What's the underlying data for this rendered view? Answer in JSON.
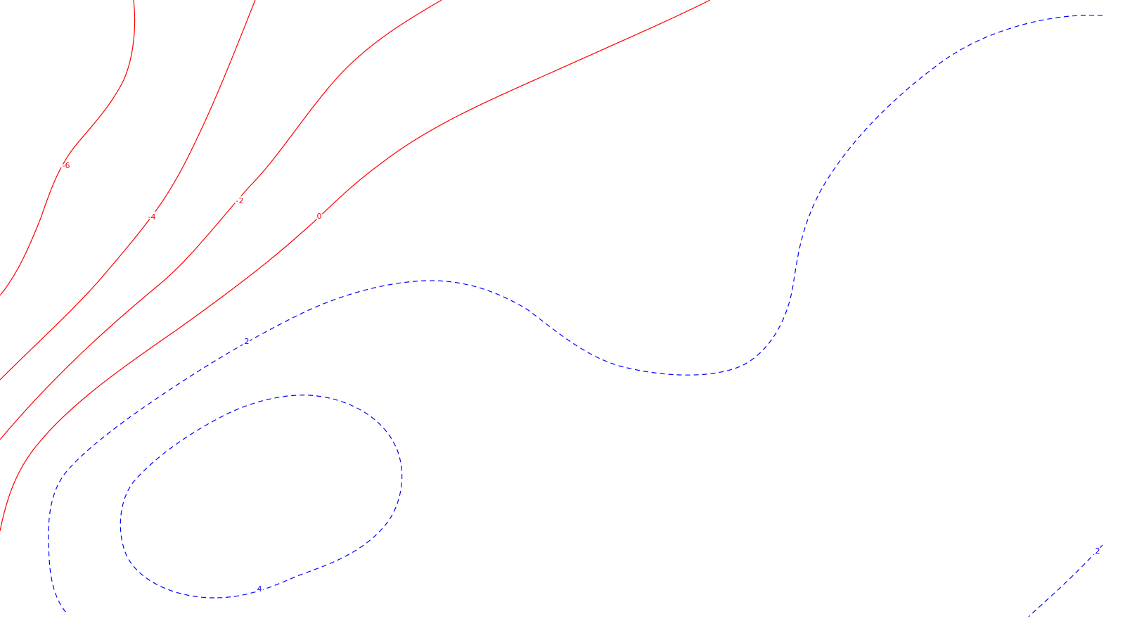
{
  "chart_data": {
    "type": "contour",
    "title": "",
    "xlabel": "",
    "ylabel": "",
    "grid": false,
    "colors": {
      "negative": "#ff0000",
      "positive": "#0000ff",
      "background": "#ffffff"
    },
    "line_styles": {
      "negative": "solid",
      "positive": "dashed"
    },
    "levels": [
      {
        "value": -6,
        "label": "-6",
        "sign": "negative"
      },
      {
        "value": -4,
        "label": "-4",
        "sign": "negative"
      },
      {
        "value": -2,
        "label": "-2",
        "sign": "negative"
      },
      {
        "value": 0,
        "label": "0",
        "sign": "negative"
      },
      {
        "value": 2,
        "label": "2",
        "sign": "positive"
      },
      {
        "value": 4,
        "label": "4",
        "sign": "positive"
      },
      {
        "value": 2,
        "label": "2",
        "sign": "positive"
      }
    ]
  }
}
